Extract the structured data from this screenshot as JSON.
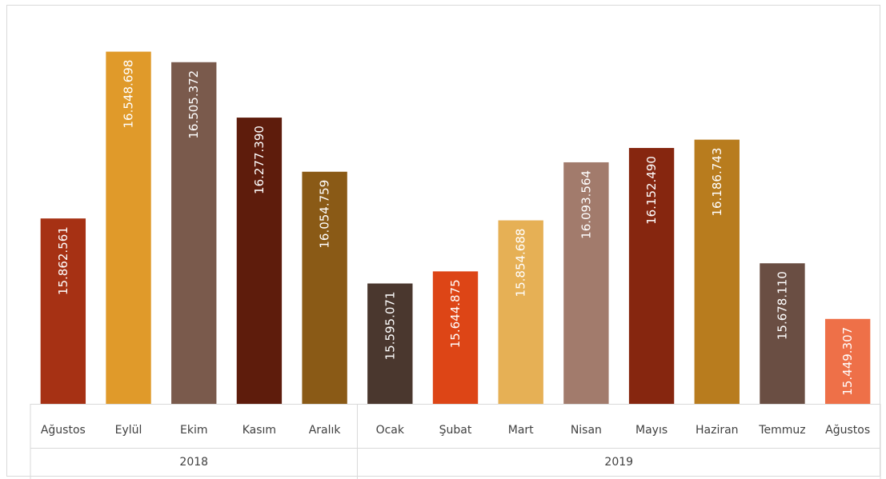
{
  "chart_data": {
    "type": "bar",
    "categories": [
      "Ağustos",
      "Eylül",
      "Ekim",
      "Kasım",
      "Aralık",
      "Ocak",
      "Şubat",
      "Mart",
      "Nisan",
      "Mayıs",
      "Haziran",
      "Temmuz",
      "Ağustos"
    ],
    "values": [
      15862561,
      16548698,
      16505372,
      16277390,
      16054759,
      15595071,
      15644875,
      15854688,
      16093564,
      16152490,
      16186743,
      15678110,
      15449307
    ],
    "data_labels": [
      "15.862.561",
      "16.548.698",
      "16.505.372",
      "16.277.390",
      "16.054.759",
      "15.595.071",
      "15.644.875",
      "15.854.688",
      "16.093.564",
      "16.152.490",
      "16.186.743",
      "15.678.110",
      "15.449.307"
    ],
    "colors": [
      "#a63114",
      "#e09a2a",
      "#7a5a4c",
      "#5e1c0c",
      "#8a5a16",
      "#4a372e",
      "#dd4516",
      "#e6b055",
      "#a27b6c",
      "#86260f",
      "#b87c1e",
      "#6a4e43",
      "#ee7048"
    ],
    "groups": [
      {
        "label": "2018",
        "start": 0,
        "end": 4
      },
      {
        "label": "2019",
        "start": 5,
        "end": 12
      }
    ],
    "ylim": [
      15100000,
      16600000
    ],
    "grid": false,
    "legend": "none",
    "title": "",
    "xlabel": "",
    "ylabel": ""
  }
}
